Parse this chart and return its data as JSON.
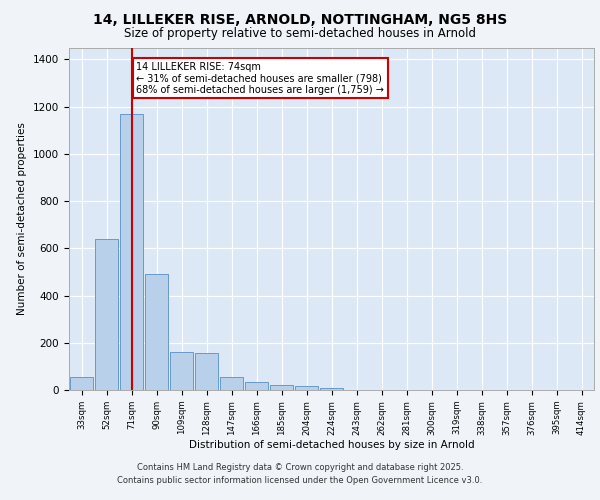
{
  "title_line1": "14, LILLEKER RISE, ARNOLD, NOTTINGHAM, NG5 8HS",
  "title_line2": "Size of property relative to semi-detached houses in Arnold",
  "xlabel": "Distribution of semi-detached houses by size in Arnold",
  "ylabel": "Number of semi-detached properties",
  "categories": [
    "33sqm",
    "52sqm",
    "71sqm",
    "90sqm",
    "109sqm",
    "128sqm",
    "147sqm",
    "166sqm",
    "185sqm",
    "204sqm",
    "224sqm",
    "243sqm",
    "262sqm",
    "281sqm",
    "300sqm",
    "319sqm",
    "338sqm",
    "357sqm",
    "376sqm",
    "395sqm",
    "414sqm"
  ],
  "values": [
    55,
    640,
    1170,
    490,
    160,
    155,
    55,
    35,
    20,
    15,
    10,
    0,
    0,
    0,
    0,
    0,
    0,
    0,
    0,
    0,
    0
  ],
  "bar_color": "#b8d0ea",
  "bar_edge_color": "#6699cc",
  "property_line_x": 2,
  "property_line_label": "14 LILLEKER RISE: 74sqm",
  "annotation_line2": "← 31% of semi-detached houses are smaller (798)",
  "annotation_line3": "68% of semi-detached houses are larger (1,759) →",
  "annotation_box_color": "#ffffff",
  "annotation_box_edge": "#cc0000",
  "vertical_line_color": "#cc0000",
  "ylim": [
    0,
    1450
  ],
  "fig_background": "#f0f4f8",
  "plot_background": "#dce8f5",
  "footer_line1": "Contains HM Land Registry data © Crown copyright and database right 2025.",
  "footer_line2": "Contains public sector information licensed under the Open Government Licence v3.0."
}
